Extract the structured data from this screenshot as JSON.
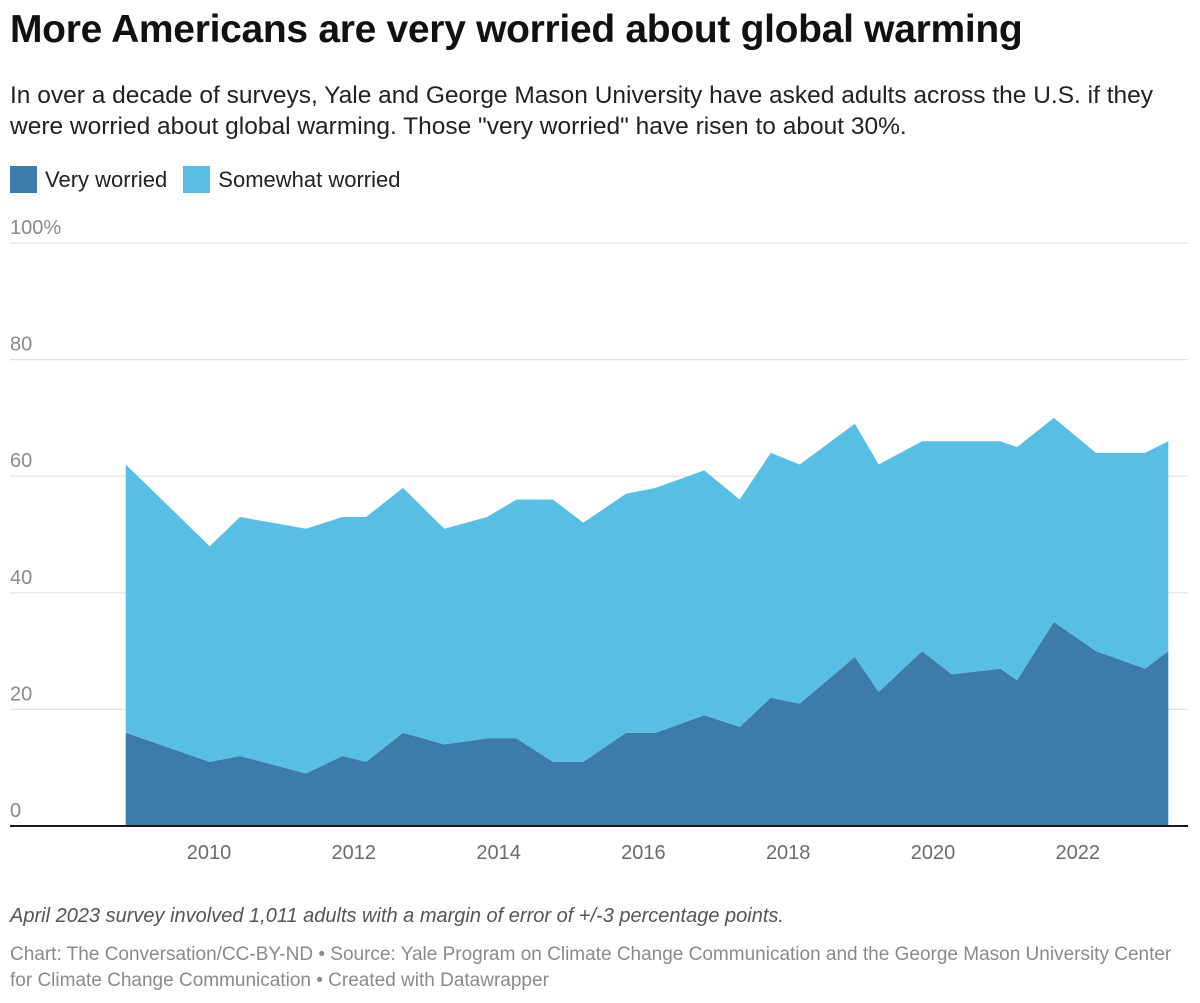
{
  "header": {
    "title": "More Americans are very worried about global warming",
    "subtitle": "In over a decade of surveys, Yale and George Mason University have asked adults across the U.S. if they were worried about global warming. Those \"very worried\" have risen to about 30%."
  },
  "legend": [
    {
      "label": "Very worried",
      "color": "#3d7ca8"
    },
    {
      "label": "Somewhat worried",
      "color": "#58bee3"
    }
  ],
  "footer": {
    "note": "April 2023 survey involved 1,011 adults with a margin of error of +/-3 percentage points.",
    "credits": "Chart: The Conversation/CC-BY-ND • Source: Yale Program on Climate Change Communication and the George Mason University Center for Climate Change Communication • Created with Datawrapper"
  },
  "chart_data": {
    "type": "area",
    "stacked": true,
    "title": "More Americans are very worried about global warming",
    "xlabel": "",
    "ylabel": "",
    "ylim": [
      0,
      100
    ],
    "xlim": [
      2008.0,
      2023.6
    ],
    "y_ticks": [
      {
        "value": 0,
        "label": "0"
      },
      {
        "value": 20,
        "label": "20"
      },
      {
        "value": 40,
        "label": "40"
      },
      {
        "value": 60,
        "label": "60"
      },
      {
        "value": 80,
        "label": "80"
      },
      {
        "value": 100,
        "label": "100%"
      }
    ],
    "x_ticks": [
      {
        "value": 2010,
        "label": "2010"
      },
      {
        "value": 2012,
        "label": "2012"
      },
      {
        "value": 2014,
        "label": "2014"
      },
      {
        "value": 2016,
        "label": "2016"
      },
      {
        "value": 2018,
        "label": "2018"
      },
      {
        "value": 2020,
        "label": "2020"
      },
      {
        "value": 2022,
        "label": "2022"
      }
    ],
    "grid": true,
    "legend_position": "top-left",
    "x": [
      2008.85,
      2010.01,
      2010.43,
      2011.34,
      2011.84,
      2012.17,
      2012.68,
      2013.25,
      2013.84,
      2014.25,
      2014.75,
      2015.17,
      2015.76,
      2016.17,
      2016.84,
      2017.33,
      2017.76,
      2018.16,
      2018.92,
      2019.25,
      2019.85,
      2020.26,
      2020.93,
      2021.16,
      2021.67,
      2022.25,
      2022.93,
      2023.25
    ],
    "series": [
      {
        "name": "Very worried",
        "color": "#3d7ca8",
        "values": [
          16,
          11,
          12,
          9,
          12,
          11,
          16,
          14,
          15,
          15,
          11,
          11,
          16,
          16,
          19,
          17,
          22,
          21,
          29,
          23,
          30,
          26,
          27,
          25,
          35,
          30,
          27,
          30
        ]
      },
      {
        "name": "Somewhat worried",
        "color": "#58bee3",
        "values": [
          46,
          37,
          41,
          42,
          41,
          42,
          42,
          37,
          38,
          41,
          45,
          41,
          41,
          42,
          42,
          39,
          42,
          41,
          40,
          39,
          36,
          40,
          39,
          40,
          35,
          34,
          37,
          36
        ]
      }
    ]
  }
}
